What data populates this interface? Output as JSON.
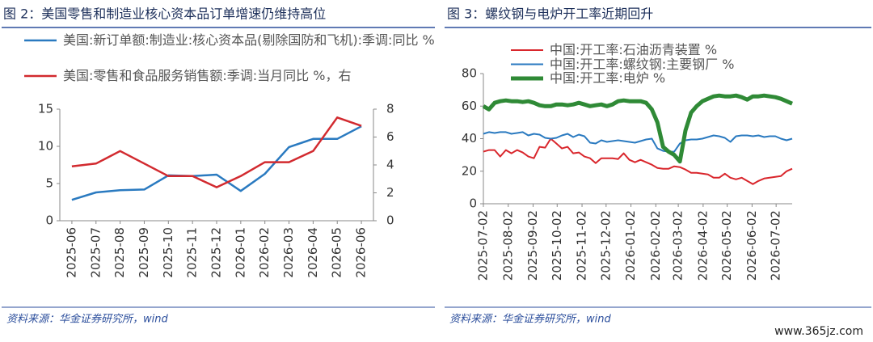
{
  "chart_data": [
    {
      "type": "line",
      "title": "图 2：美国零售和制造业核心资本品订单增速仍维持高位",
      "categories": [
        "2025-06",
        "2025-07",
        "2025-08",
        "2025-09",
        "2025-10",
        "2025-11",
        "2025-12",
        "2026-01",
        "2026-02",
        "2026-03",
        "2026-04",
        "2026-05",
        "2026-06"
      ],
      "series": [
        {
          "name": "美国:新订单额:制造业:核心资本品(剔除国防和飞机):季调:同比 %",
          "color": "#2a7ac0",
          "values": [
            2.8,
            3.8,
            4.1,
            4.2,
            6.1,
            6.0,
            6.2,
            4.0,
            6.3,
            9.9,
            11.0,
            11.0,
            12.7
          ]
        },
        {
          "name": "美国:零售和食品服务销售额:季调:当月同比 %，右",
          "color": "#d22a2f",
          "axis": "y2",
          "values": [
            3.9,
            4.1,
            5.0,
            4.1,
            3.2,
            3.2,
            2.4,
            3.2,
            4.2,
            4.2,
            5.0,
            7.4,
            6.8
          ]
        }
      ],
      "ylim": [
        0,
        15
      ],
      "yticks": [
        0,
        5,
        10,
        15
      ],
      "y2lim": [
        0,
        8
      ],
      "y2ticks": [
        0,
        2,
        4,
        6,
        8
      ],
      "source": "资料来源：华金证券研究所，wind"
    },
    {
      "type": "line",
      "title": "图 3：螺纹钢与电炉开工率近期回升",
      "x": [
        "2025-07-02",
        "2025-07-09",
        "2025-07-16",
        "2025-07-23",
        "2025-07-30",
        "2025-08-06",
        "2025-08-13",
        "2025-08-20",
        "2025-08-27",
        "2025-09-03",
        "2025-09-10",
        "2025-09-17",
        "2025-09-24",
        "2025-10-01",
        "2025-10-08",
        "2025-10-15",
        "2025-10-22",
        "2025-10-29",
        "2025-11-05",
        "2025-11-12",
        "2025-11-19",
        "2025-11-26",
        "2025-12-03",
        "2025-12-10",
        "2025-12-17",
        "2025-12-24",
        "2025-12-31",
        "2026-01-07",
        "2026-01-14",
        "2026-01-21",
        "2026-01-28",
        "2026-02-04",
        "2026-02-11",
        "2026-02-18",
        "2026-02-25",
        "2026-03-04",
        "2026-03-11",
        "2026-03-18",
        "2026-03-25",
        "2026-04-01",
        "2026-04-08",
        "2026-04-15",
        "2026-04-22",
        "2026-04-29",
        "2026-05-06",
        "2026-05-13",
        "2026-05-20",
        "2026-05-27",
        "2026-06-03",
        "2026-06-10",
        "2026-06-17",
        "2026-06-24",
        "2026-07-01",
        "2026-07-08",
        "2026-07-15",
        "2026-07-22"
      ],
      "series": [
        {
          "name": "中国:开工率:石油沥青装置 %",
          "color": "#d9262c",
          "width": 2,
          "values": [
            32,
            33,
            33,
            29,
            33,
            31,
            33,
            31.5,
            29,
            28,
            35,
            34.5,
            40,
            37,
            34,
            35,
            31,
            31.5,
            29,
            28,
            25,
            28,
            28,
            28,
            27.5,
            31,
            27,
            25.5,
            27,
            25.5,
            24,
            22,
            21.5,
            21.5,
            23,
            22.5,
            21,
            19,
            19,
            18.5,
            18,
            16,
            16,
            18.5,
            16,
            15,
            16,
            14,
            12,
            14,
            15.5,
            16,
            16.5,
            17,
            20,
            21.5
          ]
        },
        {
          "name": "中国:开工率:螺纹钢:主要钢厂 %",
          "color": "#2a7ac0",
          "width": 2,
          "values": [
            43,
            44,
            43.5,
            44,
            44,
            43,
            43.5,
            44,
            42,
            43,
            42.5,
            40.5,
            40,
            40.5,
            42,
            43,
            41,
            42.5,
            41.5,
            37.5,
            37,
            39,
            38,
            38.5,
            39,
            38.5,
            38,
            37.5,
            38.5,
            39.5,
            40,
            34,
            32.5,
            32,
            32,
            37,
            39,
            39.5,
            39.5,
            40,
            41,
            42,
            41.5,
            40.5,
            38,
            41.5,
            42,
            42,
            41.5,
            42,
            41,
            41.5,
            41.5,
            40,
            39,
            40
          ]
        },
        {
          "name": "中国:开工率:电炉 %",
          "color": "#2f8a36",
          "width": 5,
          "values": [
            60,
            58,
            62,
            63,
            63.5,
            63,
            63,
            62.5,
            63,
            62,
            60.5,
            60,
            60,
            61,
            61,
            60.5,
            61,
            62,
            61,
            60,
            60.5,
            61,
            60,
            61,
            63,
            63.5,
            63,
            63,
            63,
            62,
            58,
            50,
            35,
            32,
            30,
            26,
            45,
            56,
            60,
            63,
            64.5,
            66,
            66.5,
            66,
            66,
            66.5,
            65.5,
            64,
            66,
            66,
            66.5,
            66,
            65.5,
            64.5,
            63,
            61.5
          ]
        }
      ],
      "xlim": [
        "2025-07-02",
        "2026-07-22"
      ],
      "xticks": [
        "2025-07-02",
        "2025-08-02",
        "2025-09-02",
        "2025-10-02",
        "2025-11-02",
        "2025-12-02",
        "2026-01-02",
        "2026-02-02",
        "2026-03-02",
        "2026-04-02",
        "2026-05-02",
        "2026-06-02",
        "2026-07-02"
      ],
      "ylim": [
        0,
        80
      ],
      "yticks": [
        0,
        20,
        40,
        60,
        80
      ],
      "source": "资料来源：华金证券研究所，wind"
    }
  ],
  "watermark": "www.365jz.com"
}
